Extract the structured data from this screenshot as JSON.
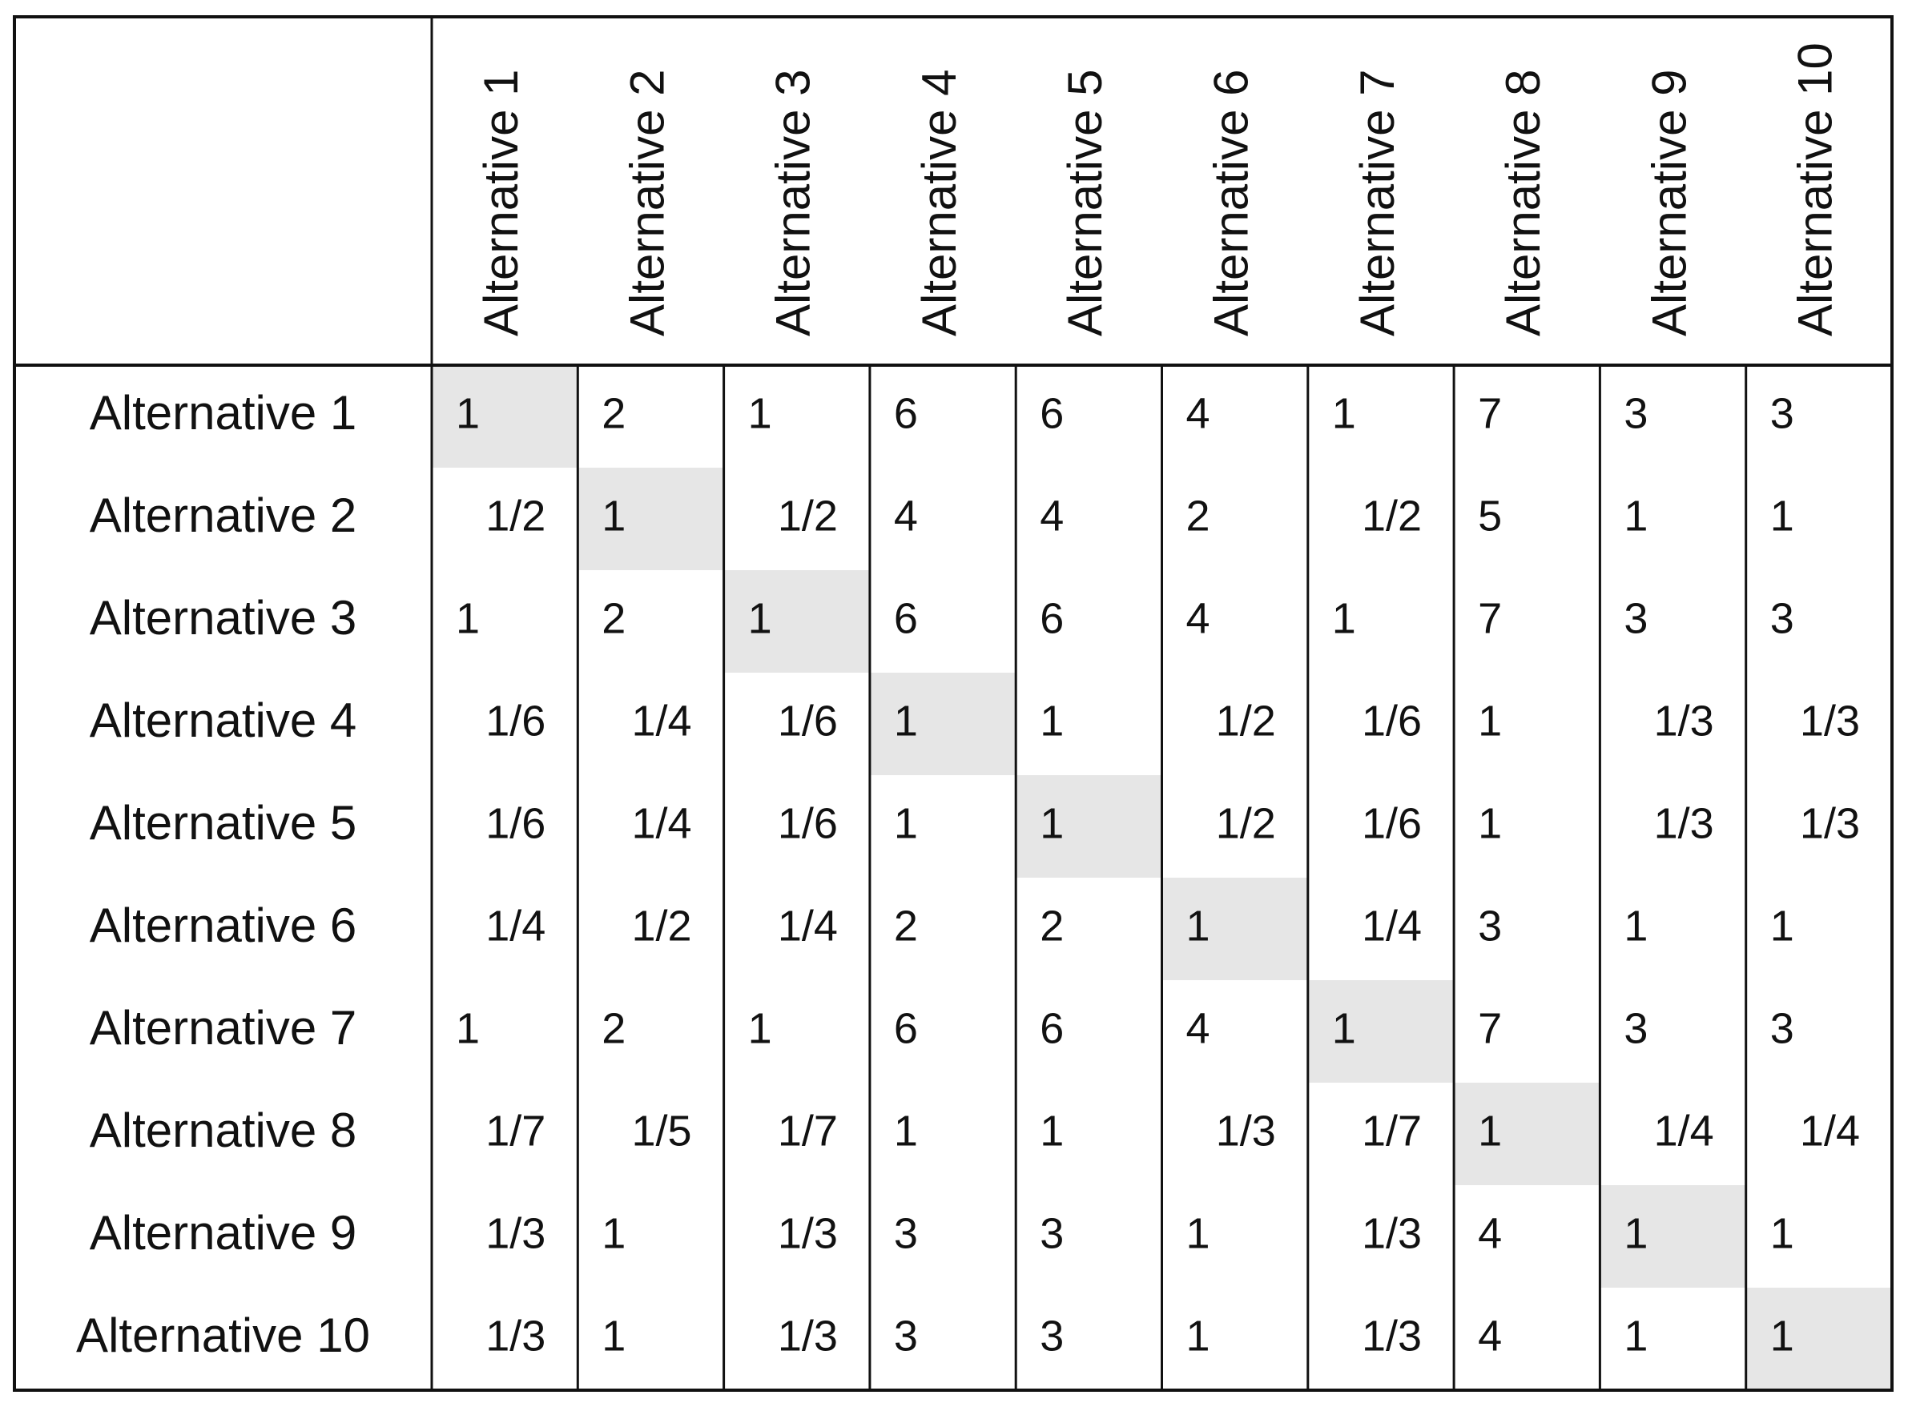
{
  "table": {
    "columns": [
      "Alternative 1",
      "Alternative 2",
      "Alternative 3",
      "Alternative 4",
      "Alternative 5",
      "Alternative 6",
      "Alternative 7",
      "Alternative 8",
      "Alternative 9",
      "Alternative 10"
    ],
    "rows": [
      {
        "label": "Alternative 1",
        "cells": [
          1,
          2,
          1,
          6,
          6,
          4,
          1,
          7,
          3,
          3
        ]
      },
      {
        "label": "Alternative 2",
        "cells": [
          "1/2",
          1,
          "1/2",
          4,
          4,
          2,
          "1/2",
          5,
          1,
          1
        ]
      },
      {
        "label": "Alternative 3",
        "cells": [
          1,
          2,
          1,
          6,
          6,
          4,
          1,
          7,
          3,
          3
        ]
      },
      {
        "label": "Alternative 4",
        "cells": [
          "1/6",
          "1/4",
          "1/6",
          1,
          1,
          "1/2",
          "1/6",
          1,
          "1/3",
          "1/3"
        ]
      },
      {
        "label": "Alternative 5",
        "cells": [
          "1/6",
          "1/4",
          "1/6",
          1,
          1,
          "1/2",
          "1/6",
          1,
          "1/3",
          "1/3"
        ]
      },
      {
        "label": "Alternative 6",
        "cells": [
          "1/4",
          "1/2",
          "1/4",
          2,
          2,
          1,
          "1/4",
          3,
          1,
          1
        ]
      },
      {
        "label": "Alternative 7",
        "cells": [
          1,
          2,
          1,
          6,
          6,
          4,
          1,
          7,
          3,
          3
        ]
      },
      {
        "label": "Alternative 8",
        "cells": [
          "1/7",
          "1/5",
          "1/7",
          1,
          1,
          "1/3",
          "1/7",
          1,
          "1/4",
          "1/4"
        ]
      },
      {
        "label": "Alternative 9",
        "cells": [
          "1/3",
          1,
          "1/3",
          3,
          3,
          1,
          "1/3",
          4,
          1,
          1
        ]
      },
      {
        "label": "Alternative 10",
        "cells": [
          "1/3",
          1,
          "1/3",
          3,
          3,
          1,
          "1/3",
          4,
          1,
          1
        ]
      }
    ]
  }
}
